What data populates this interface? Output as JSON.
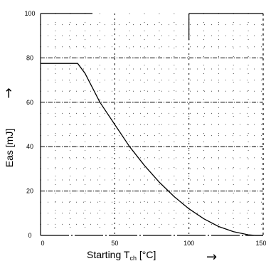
{
  "chart_data": {
    "type": "line",
    "xlabel": "Starting T",
    "xlabel_sub": "ch",
    "xlabel_unit": " [°C]",
    "ylabel": "Eas [mJ]",
    "xlim": [
      0,
      150
    ],
    "ylim": [
      0,
      100
    ],
    "x_ticks": [
      "0",
      "50",
      "100",
      "150"
    ],
    "y_ticks": [
      "0",
      "20",
      "40",
      "60",
      "80",
      "100"
    ],
    "grid": true,
    "axis_arrow": "→",
    "series": [
      {
        "x": [
          0,
          25,
          30,
          40,
          50,
          60,
          70,
          80,
          90,
          100,
          110,
          120,
          130,
          140,
          145,
          150
        ],
        "y": [
          77.5,
          77.5,
          73,
          60,
          50,
          40,
          31.5,
          24,
          17.5,
          12,
          7.5,
          4,
          1.7,
          0.3,
          0,
          0
        ]
      }
    ]
  }
}
